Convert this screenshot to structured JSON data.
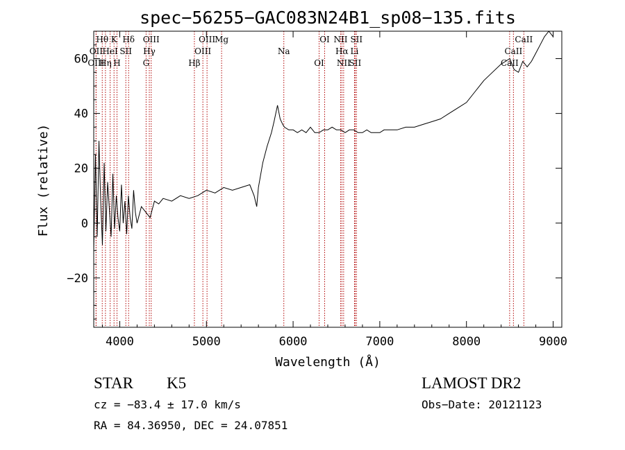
{
  "chart_data": {
    "type": "line",
    "title": "spec−56255−GAC083N24B1_sp08−135.fits",
    "xlabel": "Wavelength (Å)",
    "ylabel": "Flux (relative)",
    "xlim": [
      3700,
      9100
    ],
    "ylim": [
      -38,
      70
    ],
    "xticks": [
      4000,
      5000,
      6000,
      7000,
      8000,
      9000
    ],
    "yticks": [
      -20,
      0,
      20,
      40,
      60
    ],
    "ytick_labels": [
      "−20",
      "0",
      "20",
      "40",
      "60"
    ],
    "grid": false,
    "series": [
      {
        "x": [
          3700,
          3720,
          3740,
          3760,
          3780,
          3800,
          3820,
          3840,
          3860,
          3880,
          3900,
          3920,
          3940,
          3960,
          3980,
          4000,
          4020,
          4040,
          4060,
          4080,
          4100,
          4120,
          4140,
          4160,
          4180,
          4200,
          4250,
          4300,
          4350,
          4400,
          4450,
          4500,
          4600,
          4700,
          4800,
          4900,
          5000,
          5100,
          5200,
          5300,
          5400,
          5500,
          5550,
          5580,
          5600,
          5650,
          5700,
          5750,
          5780,
          5800,
          5820,
          5850,
          5880,
          5900,
          5950,
          6000,
          6050,
          6100,
          6150,
          6200,
          6250,
          6300,
          6350,
          6400,
          6450,
          6500,
          6550,
          6600,
          6650,
          6700,
          6750,
          6800,
          6850,
          6900,
          6950,
          7000,
          7050,
          7100,
          7200,
          7300,
          7400,
          7500,
          7600,
          7700,
          7800,
          7900,
          8000,
          8100,
          8200,
          8300,
          8400,
          8450,
          8500,
          8550,
          8600,
          8650,
          8700,
          8750,
          8800,
          8850,
          8900,
          8950,
          9000
        ],
        "values": [
          -10,
          25,
          -5,
          30,
          8,
          -8,
          22,
          -3,
          15,
          5,
          -5,
          18,
          -2,
          10,
          2,
          -3,
          14,
          0,
          8,
          -4,
          10,
          2,
          -2,
          12,
          4,
          0,
          6,
          4,
          2,
          8,
          7,
          9,
          8,
          10,
          9,
          10,
          12,
          11,
          13,
          12,
          13,
          14,
          10,
          6,
          13,
          22,
          28,
          33,
          37,
          40,
          43,
          38,
          36,
          35,
          34,
          34,
          33,
          34,
          33,
          35,
          33,
          33,
          34,
          34,
          35,
          34,
          34,
          33,
          34,
          34,
          33,
          33,
          34,
          33,
          33,
          33,
          34,
          34,
          34,
          35,
          35,
          36,
          37,
          38,
          40,
          42,
          44,
          48,
          52,
          55,
          58,
          59,
          60,
          56,
          55,
          59,
          57,
          59,
          62,
          65,
          68,
          70,
          68
        ]
      }
    ],
    "spectral_lines": [
      {
        "label": "Hθ",
        "wavelength": 3798
      },
      {
        "label": "OII",
        "wavelength": 3727
      },
      {
        "label": "OIII",
        "wavelength": 3727
      },
      {
        "label": "K",
        "wavelength": 3934
      },
      {
        "label": "HeI",
        "wavelength": 3889
      },
      {
        "label": "Hη",
        "wavelength": 3835
      },
      {
        "label": "Hδ",
        "wavelength": 4102
      },
      {
        "label": "SII",
        "wavelength": 4070
      },
      {
        "label": "H",
        "wavelength": 3968
      },
      {
        "label": "OIII",
        "wavelength": 4363
      },
      {
        "label": "Hγ",
        "wavelength": 4341
      },
      {
        "label": "G",
        "wavelength": 4304
      },
      {
        "label": "OIII",
        "wavelength": 5007
      },
      {
        "label": "OIII",
        "wavelength": 4959
      },
      {
        "label": "Hβ",
        "wavelength": 4861
      },
      {
        "label": "Mg",
        "wavelength": 5175
      },
      {
        "label": "Na",
        "wavelength": 5893
      },
      {
        "label": "OI",
        "wavelength": 6300
      },
      {
        "label": "OI",
        "wavelength": 6364
      },
      {
        "label": "Hα",
        "wavelength": 6563
      },
      {
        "label": "SII",
        "wavelength": 6716
      },
      {
        "label": "NII",
        "wavelength": 6548
      },
      {
        "label": "Li",
        "wavelength": 6708
      },
      {
        "label": "NII",
        "wavelength": 6583
      },
      {
        "label": "SII",
        "wavelength": 6731
      },
      {
        "label": "CaII",
        "wavelength": 8542
      },
      {
        "label": "CaII",
        "wavelength": 8498
      },
      {
        "label": "CaII",
        "wavelength": 8662
      }
    ],
    "line_color": "#000000",
    "marker_color": "#b00000"
  },
  "info": {
    "class": "STAR",
    "subclass": "K5",
    "survey": "LAMOST DR2",
    "redshift": "cz = −83.4 ± 17.0 km/s",
    "obs_date": "Obs−Date: 20121123",
    "coords": "RA =  84.36950, DEC =  24.07851"
  }
}
